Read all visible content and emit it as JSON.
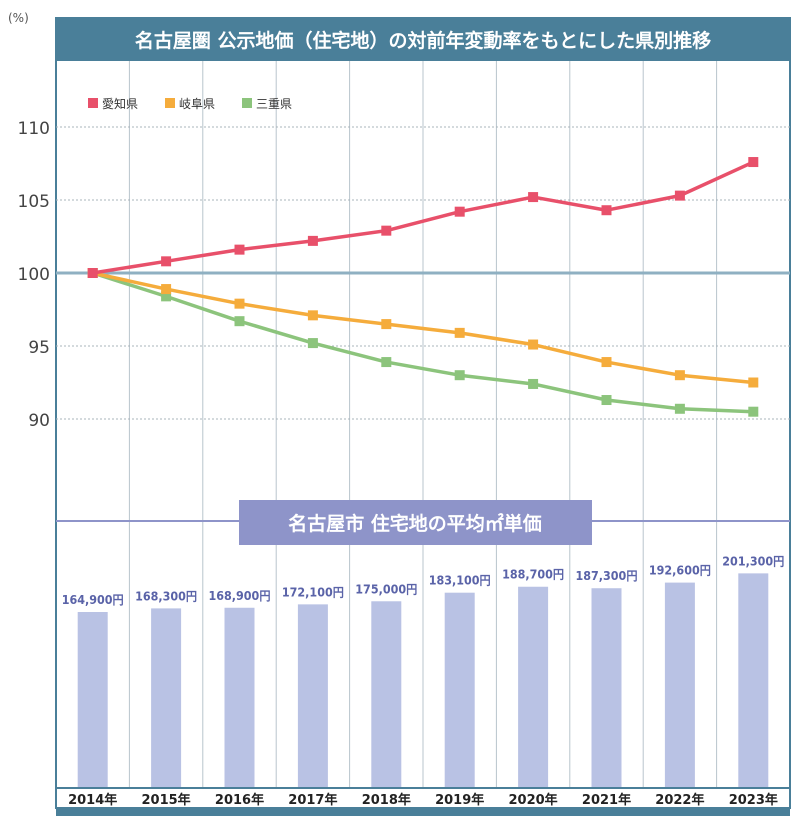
{
  "chart_data": [
    {
      "type": "line",
      "title": "名古屋圏 公示地価（住宅地）の対前年変動率をもとにした県別推移",
      "ylabel": "(%)",
      "ylim": [
        85,
        113
      ],
      "yticks": [
        90,
        95,
        100,
        105,
        110
      ],
      "x": [
        "2014年",
        "2015年",
        "2016年",
        "2017年",
        "2018年",
        "2019年",
        "2020年",
        "2021年",
        "2022年",
        "2023年"
      ],
      "legend_position": "top-left",
      "series": [
        {
          "name": "愛知県",
          "color": "#e8506a",
          "values": [
            100,
            100.8,
            101.6,
            102.2,
            102.9,
            104.2,
            105.2,
            104.3,
            105.3,
            107.6
          ]
        },
        {
          "name": "岐阜県",
          "color": "#f5ac3c",
          "values": [
            100,
            98.9,
            97.9,
            97.1,
            96.5,
            95.9,
            95.1,
            93.9,
            93.0,
            92.5
          ]
        },
        {
          "name": "三重県",
          "color": "#8cc47c",
          "values": [
            100,
            98.4,
            96.7,
            95.2,
            93.9,
            93.0,
            92.4,
            91.3,
            90.7,
            90.5
          ]
        }
      ]
    },
    {
      "type": "bar",
      "title": "名古屋市 住宅地の平均㎡単価",
      "categories": [
        "2014年",
        "2015年",
        "2016年",
        "2017年",
        "2018年",
        "2019年",
        "2020年",
        "2021年",
        "2022年",
        "2023年"
      ],
      "values": [
        164900,
        168300,
        168900,
        172100,
        175000,
        183100,
        188700,
        187300,
        192600,
        201300
      ],
      "labels": [
        "164,900円",
        "168,300円",
        "168,900円",
        "172,100円",
        "175,000円",
        "183,100円",
        "188,700円",
        "187,300円",
        "192,600円",
        "201,300円"
      ],
      "color": "#b9c2e4",
      "label_color": "#5a63a8"
    }
  ],
  "colors": {
    "frame": "#4a7f99",
    "bar_title_bg": "#8e94c9",
    "grid": "#b8c4cc"
  }
}
